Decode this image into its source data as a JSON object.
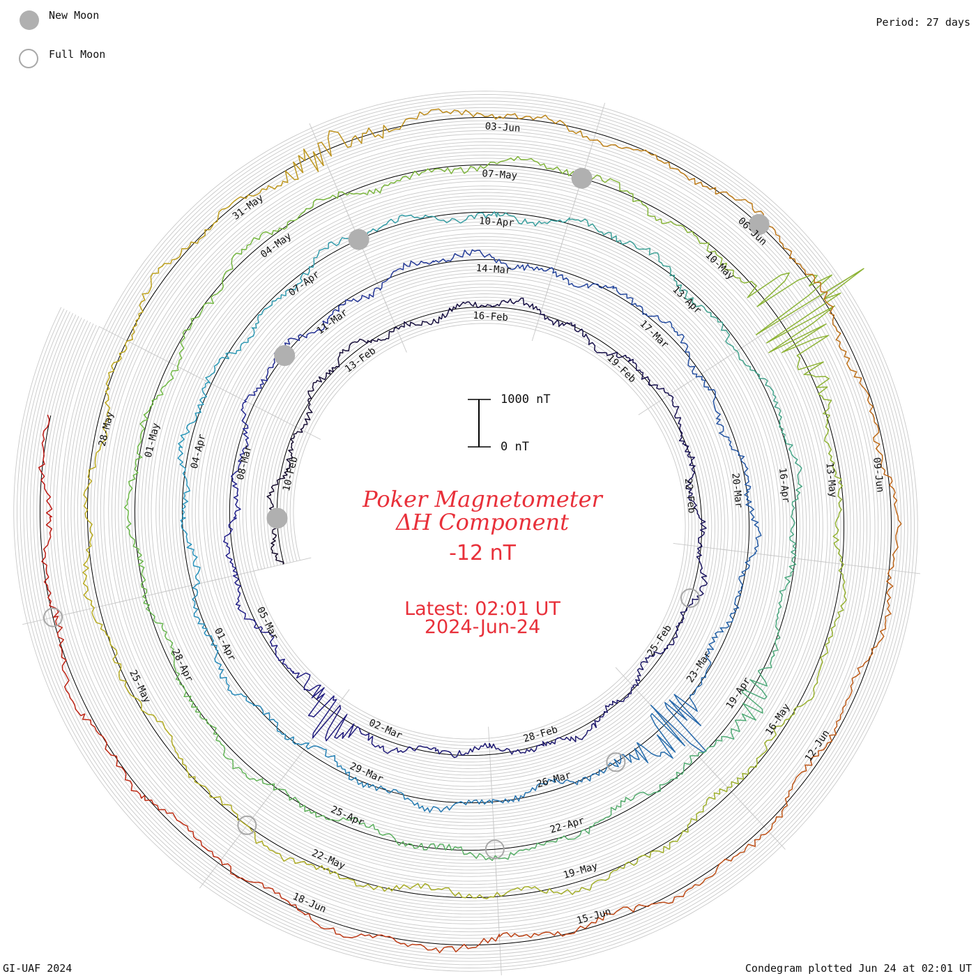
{
  "legend": {
    "new_moon_label": "New Moon",
    "full_moon_label": "Full Moon",
    "new_moon_color": "#b0b0b0",
    "full_moon_color": "#a8a8a8"
  },
  "period_label": "Period: 27 days",
  "footer": {
    "left": "GI-UAF 2024",
    "right": "Condegram plotted Jun 24 at 02:01 UT"
  },
  "title": {
    "line1": "Poker Magnetometer",
    "line2": "ΔH Component",
    "current_value": "-12 nT",
    "latest": "Latest: 02:01 UT",
    "date": "2024-Jun-24",
    "color": "#e8303a"
  },
  "scale_bar": {
    "top_label": "1000 nT",
    "bottom_label": "0 nT"
  },
  "chart_data": {
    "type": "line",
    "layout": "spiral condegram",
    "period_days": 27,
    "start_date": "2024-02-08",
    "end_date": "2024-06-24",
    "units": "nT",
    "rings": [
      {
        "labels": [
          "10-Feb",
          "13-Feb",
          "16-Feb",
          "19-Feb",
          "22-Feb",
          "25-Feb",
          "28-Feb",
          "02-Mar",
          "05-Mar"
        ],
        "color": "#1a1040"
      },
      {
        "labels": [
          "08-Mar",
          "11-Mar",
          "14-Mar",
          "17-Mar",
          "20-Mar",
          "23-Mar",
          "26-Mar",
          "29-Mar",
          "01-Apr"
        ],
        "color": "#23208a"
      },
      {
        "labels": [
          "04-Apr",
          "07-Apr",
          "10-Apr",
          "13-Apr",
          "16-Apr",
          "19-Apr",
          "22-Apr",
          "25-Apr",
          "28-Apr"
        ],
        "color": "#2a8fb8"
      },
      {
        "labels": [
          "01-May",
          "04-May",
          "07-May",
          "10-May",
          "13-May",
          "16-May",
          "19-May",
          "22-May",
          "25-May"
        ],
        "color": "#7ab82a"
      },
      {
        "labels": [
          "28-May",
          "31-May",
          "03-Jun",
          "06-Jun",
          "09-Jun",
          "12-Jun",
          "15-Jun",
          "18-Jun"
        ],
        "color": "#c08a10"
      }
    ],
    "new_moon_dates": [
      "2024-02-09",
      "2024-03-10",
      "2024-04-08",
      "2024-05-08",
      "2024-06-06"
    ],
    "full_moon_dates": [
      "2024-02-24",
      "2024-03-25",
      "2024-04-23",
      "2024-05-23",
      "2024-06-22"
    ],
    "events": [
      {
        "date": "2024-03-03",
        "peak_nT": 600
      },
      {
        "date": "2024-03-24",
        "peak_nT": 900
      },
      {
        "date": "2024-04-19",
        "peak_nT": 300
      },
      {
        "date": "2024-05-11",
        "peak_nT": 1400
      },
      {
        "date": "2024-06-01",
        "peak_nT": 400
      }
    ]
  }
}
